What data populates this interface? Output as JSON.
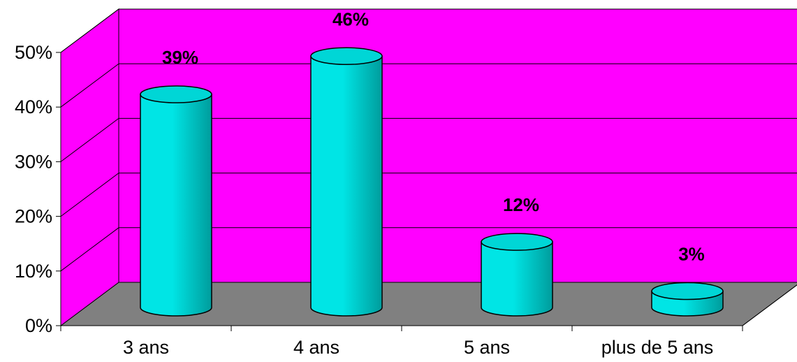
{
  "chart_data": {
    "type": "bar",
    "categories": [
      "3 ans",
      "4 ans",
      "5 ans",
      "plus de 5 ans"
    ],
    "values": [
      39,
      46,
      12,
      3
    ],
    "data_labels": [
      "39%",
      "46%",
      "12%",
      "3%"
    ],
    "y_ticks": [
      0,
      10,
      20,
      30,
      40,
      50
    ],
    "y_tick_labels": [
      "0%",
      "10%",
      "20%",
      "30%",
      "40%",
      "50%"
    ],
    "ylim": [
      0,
      50
    ],
    "grid": true,
    "style": "3d-cylinder",
    "colors": {
      "back_wall": "#FF00FF",
      "floor": "#808080",
      "bar": "#00E5E5",
      "bar_dark": "#009C9C",
      "bar_top": "#00D6D6"
    }
  }
}
